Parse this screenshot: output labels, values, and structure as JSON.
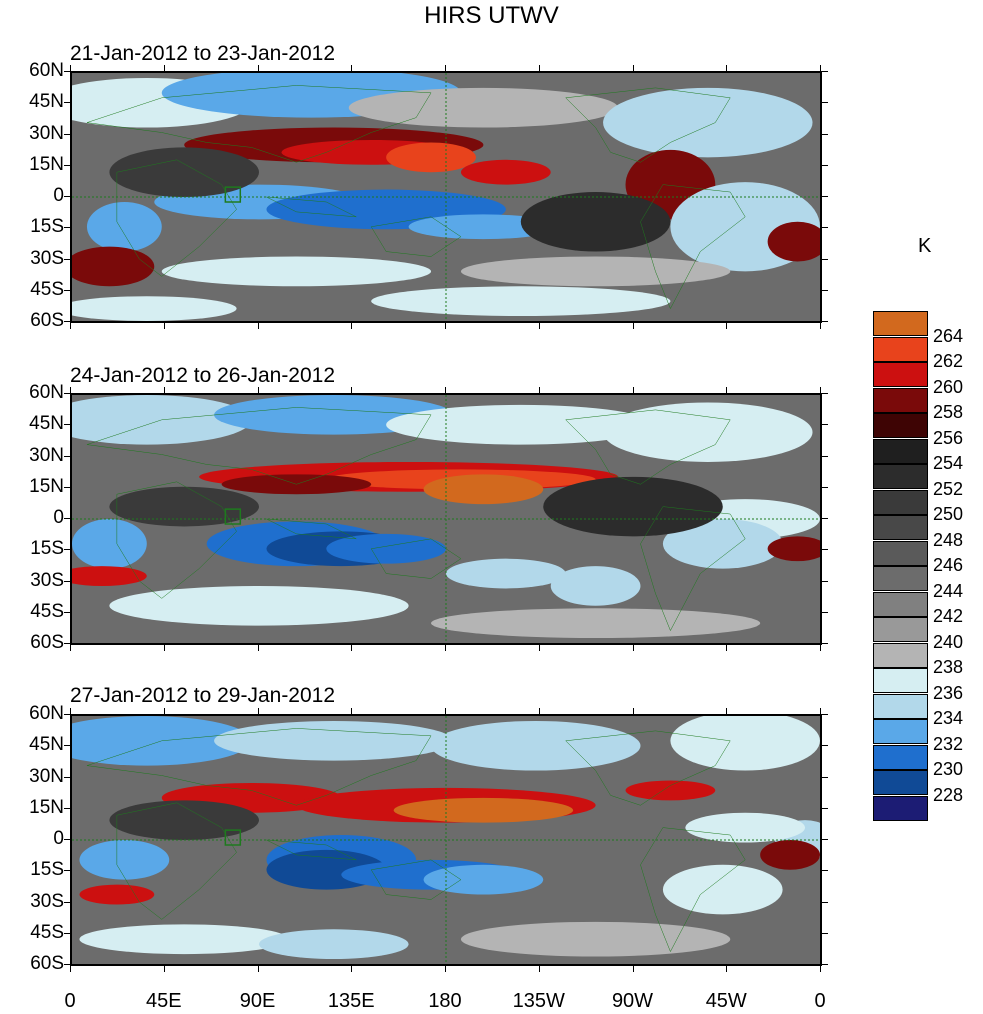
{
  "title": "HIRS UTWV",
  "colorbar": {
    "unit": "K",
    "levels": [
      {
        "label": "264",
        "color": "#d2691e"
      },
      {
        "label": "262",
        "color": "#e8431c"
      },
      {
        "label": "260",
        "color": "#cc1010"
      },
      {
        "label": "258",
        "color": "#7a0a0a"
      },
      {
        "label": "256",
        "color": "#3e0404"
      },
      {
        "label": "254",
        "color": "#1f1f1f"
      },
      {
        "label": "252",
        "color": "#2c2c2c"
      },
      {
        "label": "250",
        "color": "#3a3a3a"
      },
      {
        "label": "248",
        "color": "#484848"
      },
      {
        "label": "246",
        "color": "#5a5a5a"
      },
      {
        "label": "244",
        "color": "#6c6c6c"
      },
      {
        "label": "242",
        "color": "#808080"
      },
      {
        "label": "240",
        "color": "#999999"
      },
      {
        "label": "238",
        "color": "#b4b4b4"
      },
      {
        "label": "236",
        "color": "#d6eef2"
      },
      {
        "label": "234",
        "color": "#b2d8ea"
      },
      {
        "label": "232",
        "color": "#5aa8e8"
      },
      {
        "label": "230",
        "color": "#1f6fce"
      },
      {
        "label": "228",
        "color": "#104a96"
      },
      {
        "label": "",
        "color": "#1c1c74"
      }
    ]
  },
  "latitude_labels": [
    "60N",
    "45N",
    "30N",
    "15N",
    "0",
    "15S",
    "30S",
    "45S",
    "60S"
  ],
  "longitude_labels": [
    "0",
    "45E",
    "90E",
    "135E",
    "180",
    "135W",
    "90W",
    "45W",
    "0"
  ],
  "panels": [
    {
      "period": "21-Jan-2012 to 23-Jan-2012"
    },
    {
      "period": "24-Jan-2012 to 26-Jan-2012"
    },
    {
      "period": "27-Jan-2012 to 29-Jan-2012"
    }
  ],
  "colors": {
    "coastline": "#1e7a1e",
    "dashed_line": "#1e7a1e",
    "background_field": "#6c6c6c"
  }
}
